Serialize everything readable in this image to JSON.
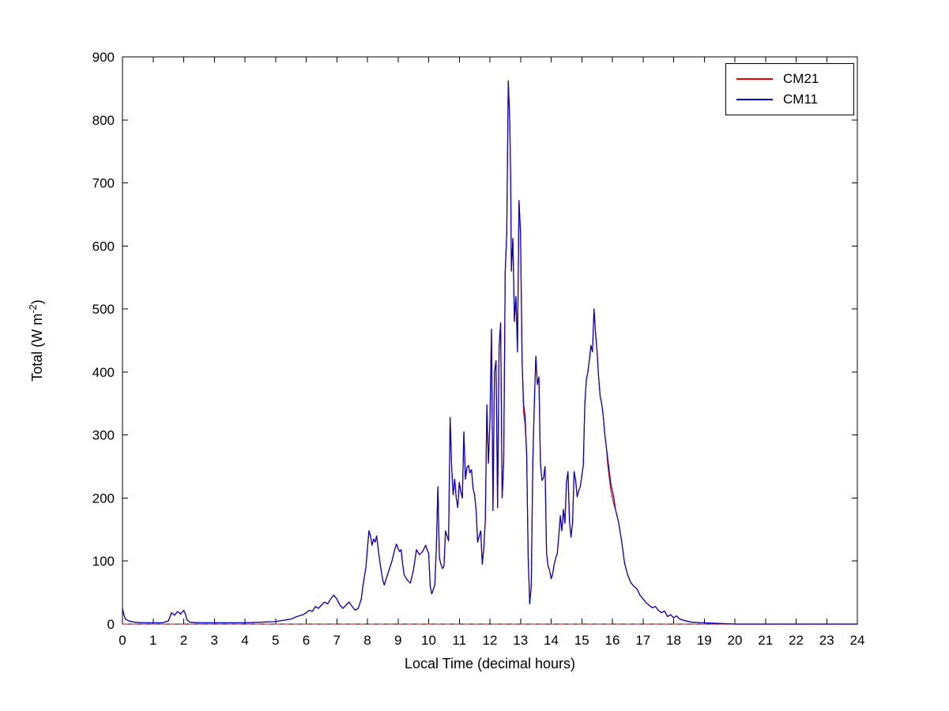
{
  "figure": {
    "background": "#ffffff"
  },
  "chart_data": {
    "type": "line",
    "title": "",
    "xlabel": "Local Time (decimal hours)",
    "ylabel": "Total (W m⁻²)",
    "ylabel_parts": {
      "prefix": "Total (W m",
      "sup": "-2",
      "suffix": ")"
    },
    "xlim": [
      0,
      24
    ],
    "ylim": [
      0,
      900
    ],
    "xticks": [
      0,
      1,
      2,
      3,
      4,
      5,
      6,
      7,
      8,
      9,
      10,
      11,
      12,
      13,
      14,
      15,
      16,
      17,
      18,
      19,
      20,
      21,
      22,
      23,
      24
    ],
    "yticks": [
      0,
      100,
      200,
      300,
      400,
      500,
      600,
      700,
      800,
      900
    ],
    "grid": false,
    "legend": {
      "position": "top-right",
      "entries": [
        "CM21",
        "CM11"
      ]
    },
    "reference_line": {
      "y": 0,
      "color": "#e60000",
      "style": "dashed"
    },
    "x": [
      0,
      0.05,
      0.1,
      0.2,
      0.4,
      0.7,
      1.0,
      1.3,
      1.5,
      1.6,
      1.7,
      1.8,
      1.9,
      2.0,
      2.05,
      2.1,
      2.2,
      2.5,
      3.0,
      3.5,
      4.0,
      4.5,
      5.0,
      5.5,
      5.7,
      5.9,
      6.0,
      6.1,
      6.2,
      6.3,
      6.4,
      6.5,
      6.6,
      6.7,
      6.8,
      6.9,
      7.0,
      7.1,
      7.2,
      7.3,
      7.4,
      7.5,
      7.6,
      7.7,
      7.8,
      7.85,
      7.9,
      7.95,
      8.0,
      8.05,
      8.1,
      8.15,
      8.2,
      8.25,
      8.3,
      8.35,
      8.4,
      8.45,
      8.5,
      8.55,
      8.6,
      8.7,
      8.8,
      8.9,
      8.95,
      9.0,
      9.05,
      9.1,
      9.15,
      9.2,
      9.3,
      9.4,
      9.5,
      9.6,
      9.7,
      9.8,
      9.9,
      9.95,
      10.0,
      10.05,
      10.1,
      10.15,
      10.2,
      10.25,
      10.3,
      10.35,
      10.4,
      10.45,
      10.5,
      10.55,
      10.6,
      10.65,
      10.7,
      10.75,
      10.8,
      10.85,
      10.9,
      10.95,
      11.0,
      11.05,
      11.1,
      11.15,
      11.2,
      11.25,
      11.3,
      11.35,
      11.4,
      11.45,
      11.5,
      11.55,
      11.6,
      11.65,
      11.7,
      11.75,
      11.8,
      11.85,
      11.9,
      11.95,
      12.0,
      12.05,
      12.1,
      12.15,
      12.2,
      12.25,
      12.3,
      12.35,
      12.4,
      12.45,
      12.5,
      12.55,
      12.6,
      12.65,
      12.68,
      12.7,
      12.75,
      12.8,
      12.85,
      12.9,
      12.95,
      13.0,
      13.05,
      13.1,
      13.15,
      13.2,
      13.25,
      13.3,
      13.35,
      13.4,
      13.45,
      13.5,
      13.55,
      13.6,
      13.65,
      13.7,
      13.75,
      13.8,
      13.85,
      13.9,
      13.95,
      14.0,
      14.05,
      14.1,
      14.15,
      14.2,
      14.25,
      14.3,
      14.35,
      14.4,
      14.45,
      14.5,
      14.55,
      14.6,
      14.65,
      14.7,
      14.75,
      14.8,
      14.85,
      14.9,
      14.95,
      15.0,
      15.05,
      15.1,
      15.15,
      15.2,
      15.25,
      15.3,
      15.35,
      15.4,
      15.45,
      15.5,
      15.55,
      15.6,
      15.65,
      15.7,
      15.75,
      15.8,
      15.85,
      15.9,
      15.95,
      16.0,
      16.05,
      16.1,
      16.2,
      16.3,
      16.4,
      16.5,
      16.6,
      16.7,
      16.8,
      16.9,
      17.0,
      17.1,
      17.2,
      17.3,
      17.4,
      17.5,
      17.6,
      17.7,
      17.8,
      17.9,
      18.0,
      18.1,
      18.2,
      18.4,
      18.6,
      19.0,
      20.0,
      22.0,
      24.0
    ],
    "series": [
      {
        "name": "CM21",
        "color": "#e60000",
        "style": "solid",
        "overlap_note": "CM21 overlaps CM11 almost everywhere; y equals CM11 series except at the deviation points below",
        "deviations": [
          [
            13.1,
            336
          ],
          [
            13.15,
            316
          ],
          [
            15.85,
            252
          ],
          [
            15.9,
            232
          ],
          [
            15.95,
            212
          ],
          [
            16.0,
            200
          ],
          [
            16.05,
            190
          ]
        ]
      },
      {
        "name": "CM11",
        "color": "#0000cc",
        "style": "solid",
        "y": [
          25,
          14,
          8,
          5,
          3,
          2,
          2,
          2,
          5,
          18,
          14,
          20,
          16,
          22,
          17,
          7,
          3,
          2,
          2,
          2,
          2,
          3,
          4,
          8,
          12,
          15,
          18,
          22,
          20,
          28,
          25,
          30,
          35,
          32,
          40,
          46,
          40,
          30,
          25,
          30,
          35,
          28,
          22,
          25,
          40,
          60,
          75,
          90,
          120,
          148,
          140,
          125,
          135,
          130,
          140,
          120,
          100,
          85,
          70,
          62,
          70,
          85,
          100,
          120,
          127,
          120,
          115,
          118,
          95,
          78,
          70,
          65,
          85,
          118,
          110,
          115,
          125,
          118,
          112,
          60,
          48,
          55,
          62,
          120,
          218,
          105,
          95,
          88,
          92,
          148,
          140,
          132,
          328,
          250,
          205,
          230,
          200,
          185,
          225,
          210,
          200,
          305,
          230,
          248,
          252,
          240,
          245,
          215,
          205,
          180,
          130,
          140,
          148,
          95,
          120,
          165,
          348,
          255,
          320,
          468,
          180,
          400,
          418,
          185,
          440,
          478,
          200,
          255,
          560,
          620,
          862,
          795,
          700,
          560,
          612,
          480,
          520,
          432,
          672,
          620,
          420,
          348,
          330,
          270,
          105,
          32,
          60,
          255,
          350,
          425,
          380,
          392,
          255,
          228,
          232,
          250,
          112,
          92,
          85,
          72,
          80,
          95,
          105,
          112,
          140,
          172,
          148,
          182,
          160,
          225,
          242,
          162,
          138,
          162,
          242,
          228,
          202,
          212,
          218,
          235,
          252,
          350,
          388,
          400,
          420,
          442,
          432,
          500,
          462,
          432,
          392,
          362,
          350,
          330,
          302,
          282,
          262,
          242,
          222,
          212,
          200,
          182,
          162,
          132,
          96,
          78,
          66,
          60,
          56,
          46,
          40,
          34,
          30,
          26,
          28,
          22,
          18,
          21,
          12,
          15,
          10,
          13,
          8,
          5,
          3,
          2,
          0,
          0,
          0
        ]
      }
    ]
  }
}
